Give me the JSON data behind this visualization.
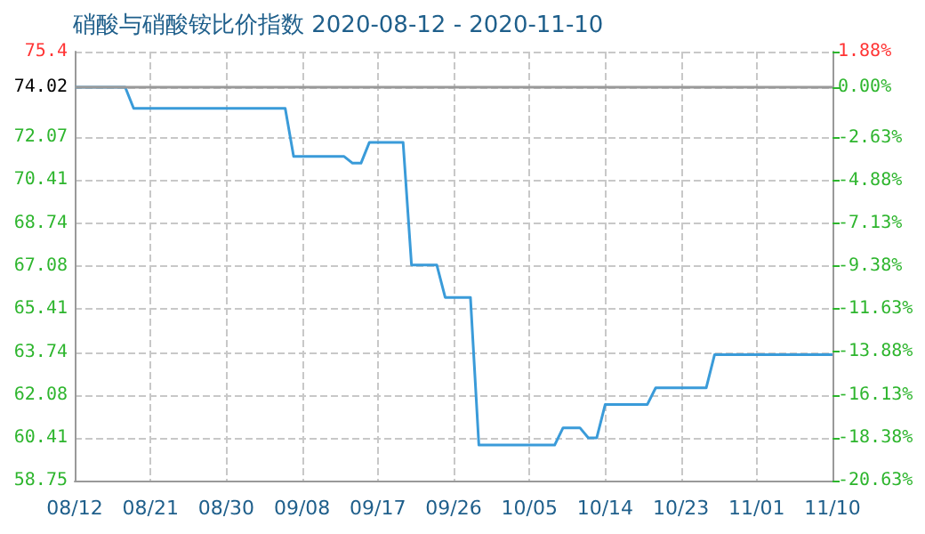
{
  "chart_data": {
    "type": "line",
    "title": "硝酸与硝酸铵比价指数 2020-08-12 - 2020-11-10",
    "x": [
      "2020-08-12",
      "2020-08-18",
      "2020-08-19",
      "2020-09-06",
      "2020-09-07",
      "2020-09-13",
      "2020-09-14",
      "2020-09-15",
      "2020-09-16",
      "2020-09-20",
      "2020-09-21",
      "2020-09-24",
      "2020-09-25",
      "2020-09-28",
      "2020-09-29",
      "2020-10-08",
      "2020-10-09",
      "2020-10-11",
      "2020-10-12",
      "2020-10-13",
      "2020-10-14",
      "2020-10-19",
      "2020-10-20",
      "2020-10-26",
      "2020-10-27",
      "2020-11-10"
    ],
    "series": [
      {
        "color": "#3a9bd9",
        "values": [
          74.02,
          74.02,
          73.2,
          73.2,
          71.33,
          71.33,
          71.07,
          71.07,
          71.88,
          71.88,
          67.12,
          67.12,
          65.86,
          65.86,
          60.13,
          60.13,
          60.8,
          60.8,
          60.41,
          60.41,
          61.7,
          61.7,
          62.35,
          62.35,
          63.64,
          63.64
        ]
      }
    ],
    "xlim": [
      "2020-08-12",
      "2020-11-10"
    ],
    "xticks": [
      {
        "value": "2020-08-12",
        "label": "08/12"
      },
      {
        "value": "2020-08-21",
        "label": "08/21"
      },
      {
        "value": "2020-08-30",
        "label": "08/30"
      },
      {
        "value": "2020-09-08",
        "label": "09/08"
      },
      {
        "value": "2020-09-17",
        "label": "09/17"
      },
      {
        "value": "2020-09-26",
        "label": "09/26"
      },
      {
        "value": "2020-10-05",
        "label": "10/05"
      },
      {
        "value": "2020-10-14",
        "label": "10/14"
      },
      {
        "value": "2020-10-23",
        "label": "10/23"
      },
      {
        "value": "2020-11-01",
        "label": "11/01"
      },
      {
        "value": "2020-11-10",
        "label": "11/10"
      }
    ],
    "ylim": [
      58.75,
      75.4
    ],
    "yticks": [
      58.75,
      60.41,
      62.08,
      63.74,
      65.41,
      67.08,
      68.74,
      70.41,
      72.07,
      74.02,
      75.4
    ],
    "y2lim": [
      -20.63,
      1.88
    ],
    "y2ticks": [
      {
        "value": -20.63,
        "label": "-20.63%"
      },
      {
        "value": -18.38,
        "label": "-18.38%"
      },
      {
        "value": -16.13,
        "label": "-16.13%"
      },
      {
        "value": -13.88,
        "label": "-13.88%"
      },
      {
        "value": -11.63,
        "label": "-11.63%"
      },
      {
        "value": -9.38,
        "label": "-9.38%"
      },
      {
        "value": -7.13,
        "label": "-7.13%"
      },
      {
        "value": -4.88,
        "label": "-4.88%"
      },
      {
        "value": -2.63,
        "label": "-2.63%"
      },
      {
        "value": 0,
        "label": "0.00%"
      },
      {
        "value": 1.88,
        "label": "1.88%"
      }
    ],
    "ref_lines": [
      {
        "axis": "y",
        "value": 74.02,
        "color": "#999999"
      }
    ],
    "grid": true,
    "marker": "none",
    "line_style": "solid"
  }
}
